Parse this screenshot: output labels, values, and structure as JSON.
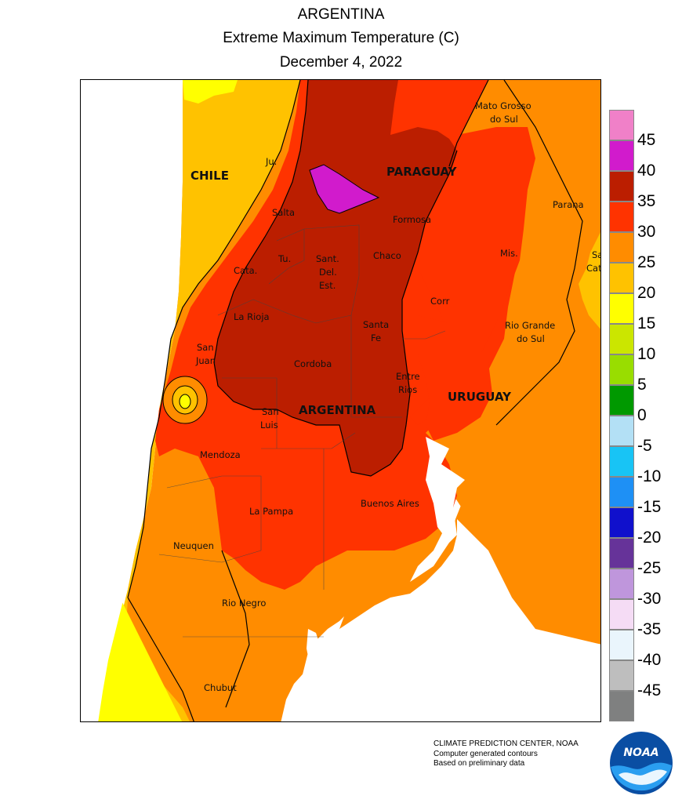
{
  "header": {
    "line1": "ARGENTINA",
    "line2": "Extreme Maximum Temperature (C)",
    "line3": "December 4, 2022"
  },
  "map": {
    "countries": [
      "CHILE",
      "PARAGUAY",
      "ARGENTINA",
      "URUGUAY"
    ],
    "regions": [
      "Ju.",
      "Salta",
      "Formosa",
      "Tu.",
      "Sant.",
      "Del.",
      "Est.",
      "Chaco",
      "Cata.",
      "La Rioja",
      "Santa",
      "Fe",
      "Corr",
      "Mis.",
      "San",
      "Juan",
      "Cordoba",
      "Entre",
      "Rios",
      "San",
      "Luis",
      "Mendoza",
      "La Pampa",
      "Buenos Aires",
      "Neuquen",
      "Rio Negro",
      "Chubut",
      "Mato Grosso",
      "do Sul",
      "Parana",
      "Sa",
      "Cata",
      "Rio Grande",
      "do Sul"
    ],
    "colors": {
      "c15_20": "#ffff00",
      "c20_25": "#ffc200",
      "c25_30": "#ff8c00",
      "c30_35": "#ff3300",
      "c35_40": "#bb1e00",
      "c40_45": "#d11bcc",
      "c10_15": "#cbe600",
      "c45": "#f080c8"
    }
  },
  "legend": {
    "labels": [
      "45",
      "40",
      "35",
      "30",
      "25",
      "20",
      "15",
      "10",
      "5",
      "0",
      "-5",
      "-10",
      "-15",
      "-20",
      "-25",
      "-30",
      "-35",
      "-40",
      "-45"
    ],
    "colors": [
      "#f080c8",
      "#d11bcc",
      "#bb1e00",
      "#ff3300",
      "#ff8c00",
      "#ffc200",
      "#ffff00",
      "#cbe600",
      "#99dd00",
      "#009900",
      "#b3e0f5",
      "#18c4f5",
      "#1e90f5",
      "#1010cc",
      "#663399",
      "#bf96dc",
      "#f5dcf5",
      "#eaf5fc",
      "#bebebe",
      "#7f8080"
    ]
  },
  "credits": {
    "line1": "CLIMATE PREDICTION CENTER, NOAA",
    "line2": "Computer generated contours",
    "line3": "Based on preliminary data",
    "logo_text": "NOAA"
  }
}
